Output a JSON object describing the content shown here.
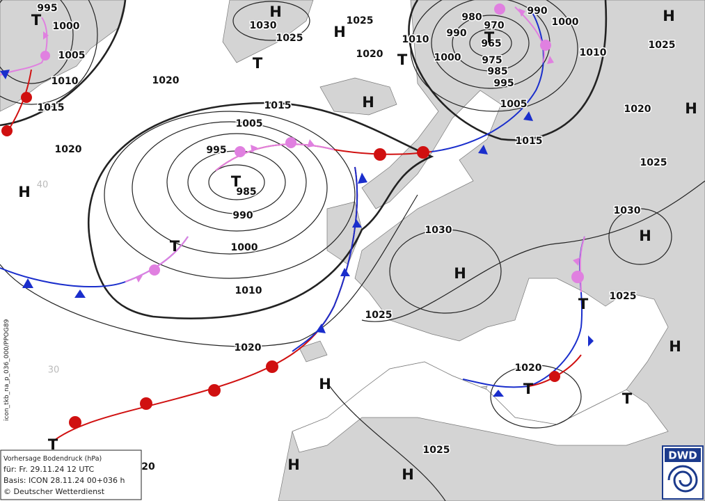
{
  "isobar_labels": [
    "995",
    "1000",
    "1005",
    "1010",
    "1015",
    "1020",
    "1030",
    "1025",
    "1025",
    "1020",
    "1020",
    "1015",
    "1005",
    "995",
    "985",
    "990",
    "1000",
    "1010",
    "1020",
    "1010",
    "980",
    "970",
    "990",
    "965",
    "1000",
    "975",
    "985",
    "995",
    "990",
    "1000",
    "1010",
    "1005",
    "1015",
    "1020",
    "1025",
    "1025",
    "1030",
    "1030",
    "1025",
    "1025",
    "1020",
    "1025",
    "20"
  ],
  "highs": [
    "H",
    "H",
    "H",
    "H",
    "H",
    "H",
    "H",
    "H",
    "H",
    "H",
    "H",
    "H"
  ],
  "lows": [
    "T",
    "T",
    "T",
    "T",
    "T",
    "T",
    "T",
    "T",
    "T",
    "T"
  ],
  "latitude_labels": [
    "40",
    "30"
  ],
  "legend": {
    "title": "Vorhersage Bodendruck (hPa)",
    "valid": "für:  Fr. 29.11.24  12 UTC",
    "base": "Basis: ICON  28.11.24 00+036 h",
    "copyright": "© Deutscher Wetterdienst"
  },
  "logo": "DWD",
  "product_code": "icon_tkb_na_p_036_000/PPOG89"
}
